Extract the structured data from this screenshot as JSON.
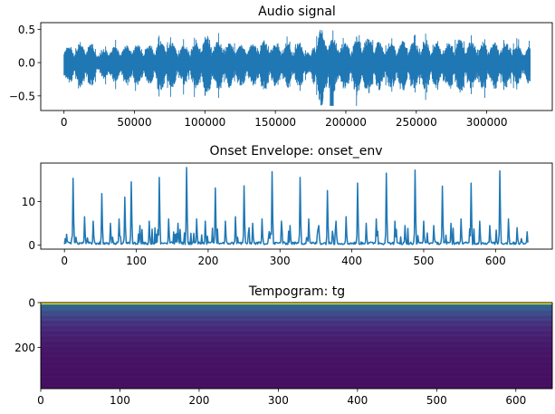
{
  "chart_data": [
    {
      "type": "line",
      "title": "Audio signal",
      "xlabel": "",
      "ylabel": "",
      "xlim": [
        -16500,
        346500
      ],
      "ylim": [
        -0.72,
        0.6
      ],
      "xticks": [
        0,
        50000,
        100000,
        150000,
        200000,
        250000,
        300000
      ],
      "xtick_labels": [
        "0",
        "50000",
        "100000",
        "150000",
        "200000",
        "250000",
        "300000"
      ],
      "yticks": [
        0.5,
        0.0,
        -0.5
      ],
      "ytick_labels": [
        "0.5",
        "0.0",
        "−0.5"
      ],
      "series_color": "#1f77b4",
      "x_range": [
        0,
        330750
      ],
      "envelope": [
        [
          0,
          0.24
        ],
        [
          10000,
          0.27
        ],
        [
          20000,
          0.3
        ],
        [
          25000,
          0.12
        ],
        [
          30000,
          0.22
        ],
        [
          40000,
          0.26
        ],
        [
          50000,
          0.28
        ],
        [
          60000,
          0.25
        ],
        [
          70000,
          0.35
        ],
        [
          80000,
          0.28
        ],
        [
          90000,
          0.25
        ],
        [
          100000,
          0.42
        ],
        [
          110000,
          0.32
        ],
        [
          120000,
          0.3
        ],
        [
          130000,
          0.25
        ],
        [
          140000,
          0.35
        ],
        [
          150000,
          0.28
        ],
        [
          160000,
          0.3
        ],
        [
          170000,
          0.29
        ],
        [
          175000,
          0.1
        ],
        [
          180000,
          0.55
        ],
        [
          190000,
          0.36
        ],
        [
          200000,
          0.3
        ],
        [
          210000,
          0.38
        ],
        [
          220000,
          0.35
        ],
        [
          230000,
          0.3
        ],
        [
          240000,
          0.34
        ],
        [
          250000,
          0.3
        ],
        [
          260000,
          0.32
        ],
        [
          270000,
          0.28
        ],
        [
          280000,
          0.36
        ],
        [
          290000,
          0.3
        ],
        [
          300000,
          0.33
        ],
        [
          310000,
          0.3
        ],
        [
          320000,
          0.28
        ],
        [
          330750,
          0.24
        ]
      ],
      "min_value": -0.65,
      "max_value": 0.55
    },
    {
      "type": "line",
      "title": "Onset Envelope: onset_env",
      "xlabel": "",
      "ylabel": "",
      "xlim": [
        -33,
        679
      ],
      "ylim": [
        -0.9,
        18.8
      ],
      "xticks": [
        0,
        100,
        200,
        300,
        400,
        500,
        600
      ],
      "xtick_labels": [
        "0",
        "100",
        "200",
        "300",
        "400",
        "500",
        "600"
      ],
      "yticks": [
        0,
        10
      ],
      "ytick_labels": [
        "0",
        "10"
      ],
      "series_color": "#1f77b4",
      "n_frames": 646,
      "peaks": [
        [
          3,
          2.5
        ],
        [
          12,
          15.3
        ],
        [
          28,
          6.5
        ],
        [
          40,
          5.5
        ],
        [
          52,
          11.8
        ],
        [
          64,
          5.0
        ],
        [
          76,
          6.0
        ],
        [
          84,
          11.0
        ],
        [
          93,
          14.5
        ],
        [
          105,
          4.5
        ],
        [
          118,
          5.5
        ],
        [
          132,
          15.5
        ],
        [
          145,
          6.0
        ],
        [
          158,
          5.0
        ],
        [
          170,
          17.8
        ],
        [
          184,
          6.0
        ],
        [
          196,
          5.5
        ],
        [
          210,
          13.1
        ],
        [
          224,
          5.5
        ],
        [
          238,
          6.5
        ],
        [
          250,
          13.6
        ],
        [
          262,
          5.0
        ],
        [
          275,
          6.0
        ],
        [
          289,
          16.8
        ],
        [
          302,
          5.5
        ],
        [
          314,
          4.5
        ],
        [
          328,
          15.5
        ],
        [
          340,
          6.0
        ],
        [
          354,
          4.5
        ],
        [
          366,
          12.5
        ],
        [
          378,
          5.5
        ],
        [
          392,
          6.5
        ],
        [
          408,
          14.2
        ],
        [
          420,
          5.0
        ],
        [
          434,
          6.0
        ],
        [
          448,
          16.5
        ],
        [
          460,
          5.5
        ],
        [
          474,
          4.5
        ],
        [
          488,
          17.2
        ],
        [
          500,
          5.5
        ],
        [
          514,
          4.5
        ],
        [
          526,
          13.5
        ],
        [
          538,
          5.0
        ],
        [
          552,
          6.0
        ],
        [
          566,
          14.2
        ],
        [
          578,
          5.5
        ],
        [
          592,
          4.5
        ],
        [
          606,
          17.0
        ],
        [
          618,
          6.0
        ],
        [
          630,
          4.0
        ],
        [
          636,
          1.5
        ]
      ]
    },
    {
      "type": "heatmap",
      "title": "Tempogram: tg",
      "xlabel": "",
      "ylabel": "",
      "xlim": [
        0,
        646
      ],
      "ylim": [
        384,
        0
      ],
      "xticks": [
        0,
        100,
        200,
        300,
        400,
        500,
        600
      ],
      "xtick_labels": [
        "0",
        "100",
        "200",
        "300",
        "400",
        "500",
        "600"
      ],
      "yticks": [
        0,
        200
      ],
      "ytick_labels": [
        "0",
        "200"
      ],
      "n_rows": 384,
      "n_cols": 646,
      "colormap": "viridis"
    }
  ]
}
